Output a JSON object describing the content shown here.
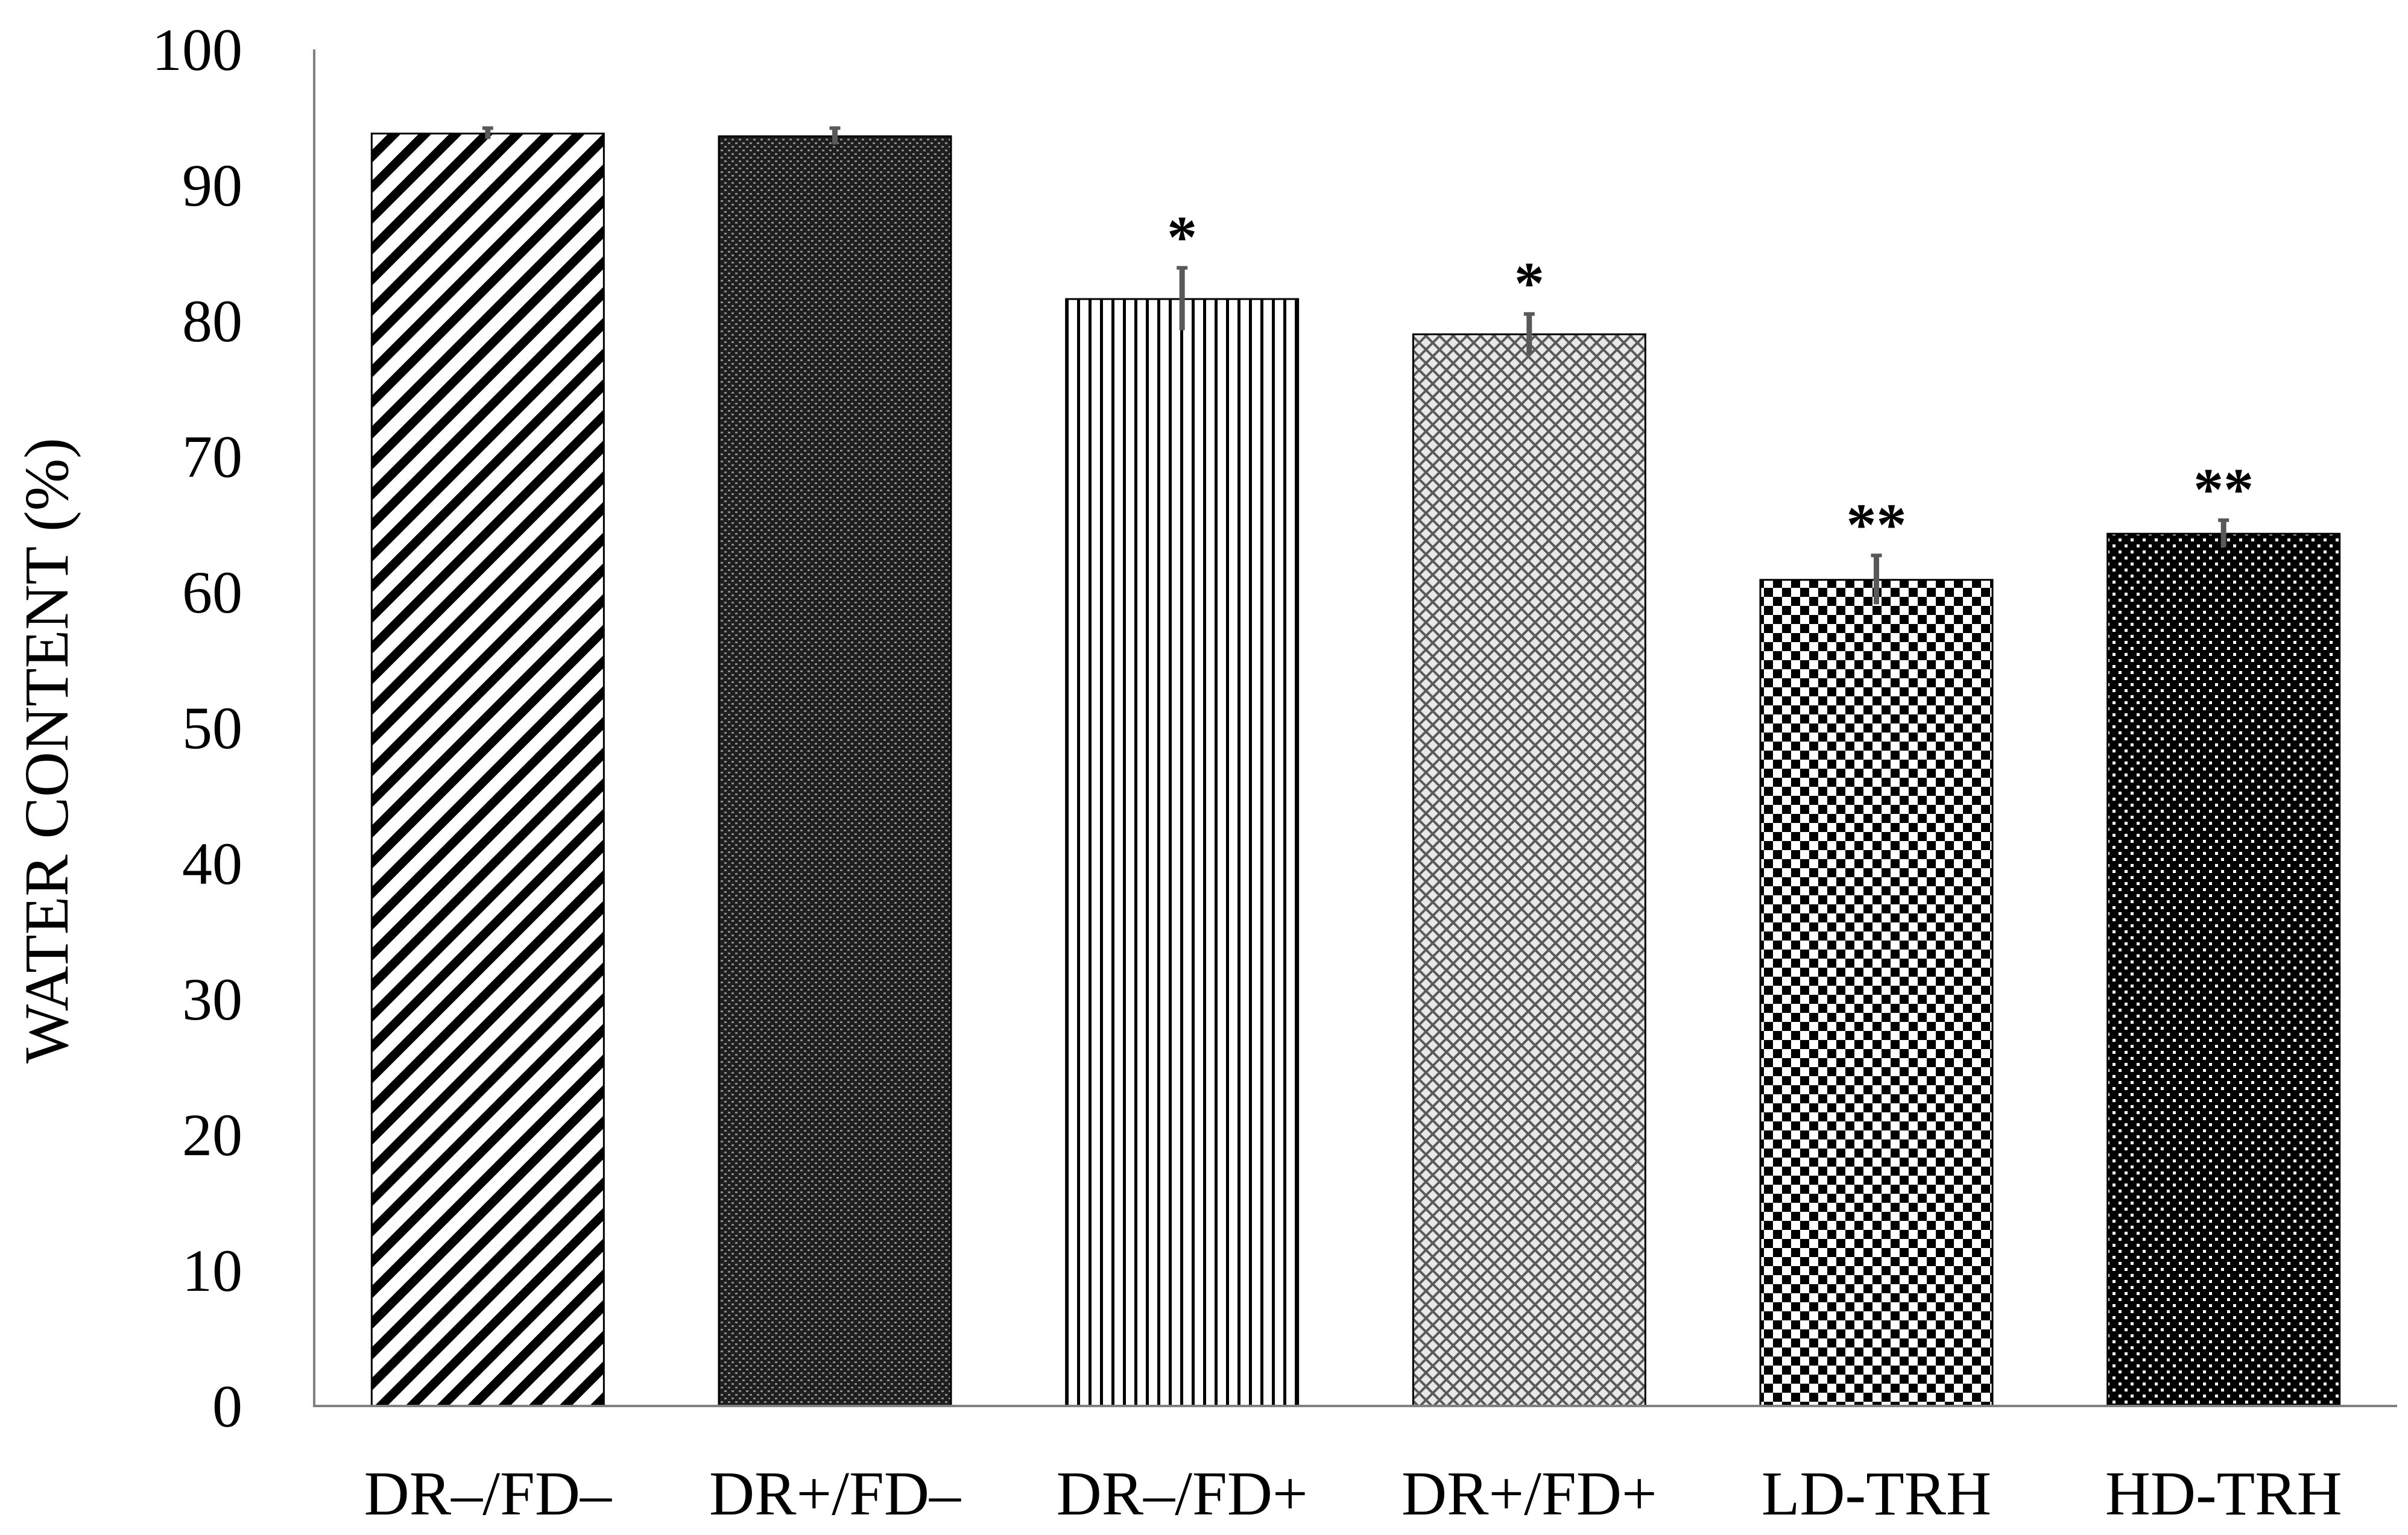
{
  "chart_data": {
    "type": "bar",
    "title": "",
    "xlabel": "",
    "ylabel": "WATER CONTENT (%)",
    "ylim": [
      0,
      100
    ],
    "yticks": [
      "0",
      "10",
      "20",
      "30",
      "40",
      "50",
      "60",
      "70",
      "80",
      "90",
      "100"
    ],
    "grid": false,
    "legend": "none",
    "categories": [
      "DR–/FD–",
      "DR+/FD–",
      "DR–/FD+",
      "DR+/FD+",
      "LD-TRH",
      "HD-TRH"
    ],
    "values": [
      93.8,
      93.6,
      81.6,
      79.0,
      60.9,
      64.3
    ],
    "errors": [
      0.4,
      0.6,
      2.3,
      1.5,
      1.8,
      1.0
    ],
    "significance": [
      "",
      "",
      "*",
      "*",
      "**",
      "**"
    ],
    "patterns": [
      "diagonal-stripes",
      "fine-dense-dots",
      "vertical-lines",
      "light-crosshatch",
      "checkerboard",
      "dark-dots"
    ],
    "colors": {
      "axis": "#808080",
      "error_bar": "#595959",
      "bar_outline": "#000000"
    }
  }
}
